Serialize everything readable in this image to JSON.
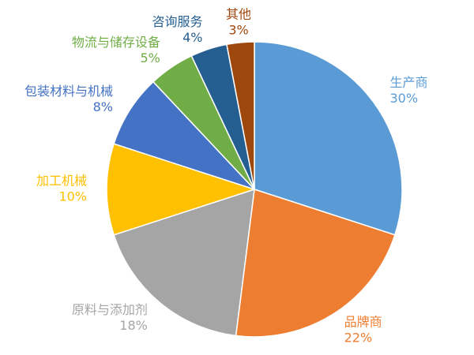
{
  "chart_data": {
    "type": "pie",
    "categories": [
      "生产商",
      "品牌商",
      "原料与添加剂",
      "加工机械",
      "包装材料与机械",
      "物流与储存设备",
      "咨询服务",
      "其他"
    ],
    "values": [
      30,
      22,
      18,
      10,
      8,
      5,
      4,
      3
    ],
    "value_labels": [
      "30%",
      "22%",
      "18%",
      "10%",
      "8%",
      "5%",
      "4%",
      "3%"
    ],
    "colors": [
      "#5b9bd5",
      "#ed7d31",
      "#a5a5a5",
      "#ffc000",
      "#4472c4",
      "#70ad47",
      "#255e91",
      "#9e480e"
    ]
  }
}
